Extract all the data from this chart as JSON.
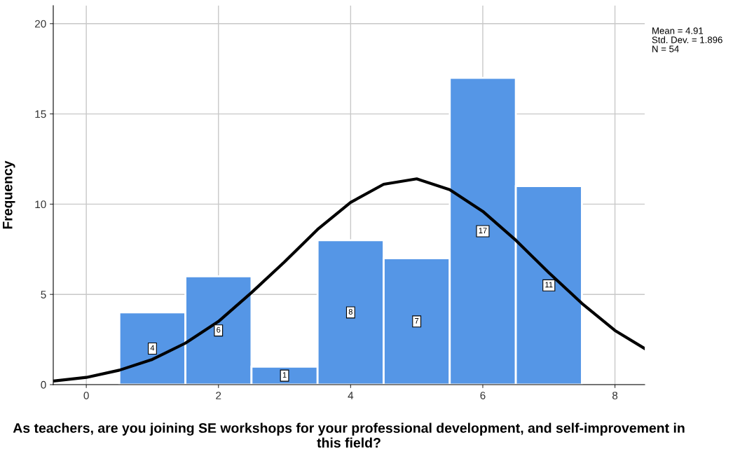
{
  "chart_data": {
    "type": "histogram",
    "xlabel": "As teachers, are you joining SE workshops for your professional development, and self-improvement in this field?",
    "ylabel": "Frequency",
    "bins": [
      0.5,
      1.5,
      2.5,
      3.5,
      4.5,
      5.5,
      6.5,
      7.5
    ],
    "values": [
      4,
      6,
      1,
      8,
      7,
      17,
      11
    ],
    "value_labels": [
      "4",
      "6",
      "1",
      "8",
      "7",
      "17",
      "11"
    ],
    "color": "#5596e6",
    "series": [
      {
        "type": "line",
        "color": "#000000",
        "x": [
          -0.5,
          0,
          0.5,
          1,
          1.5,
          2,
          2.5,
          3,
          3.5,
          4,
          4.5,
          5,
          5.5,
          6,
          6.5,
          7,
          7.5,
          8,
          8.45
        ],
        "values": [
          0.2,
          0.4,
          0.8,
          1.4,
          2.3,
          3.5,
          5.1,
          6.8,
          8.6,
          10.1,
          11.1,
          11.4,
          10.8,
          9.6,
          8.0,
          6.2,
          4.5,
          3.0,
          2.0
        ]
      }
    ],
    "xlim": [
      -0.5,
      8.45
    ],
    "ylim": [
      0,
      21
    ],
    "xticks": [
      0,
      2,
      4,
      6,
      8
    ],
    "yticks": [
      0,
      5,
      10,
      15,
      20
    ],
    "grid": true,
    "legend": false,
    "annotations": [
      "Mean = 4.91",
      "Std. Dev. = 1.896",
      "N = 54"
    ]
  }
}
